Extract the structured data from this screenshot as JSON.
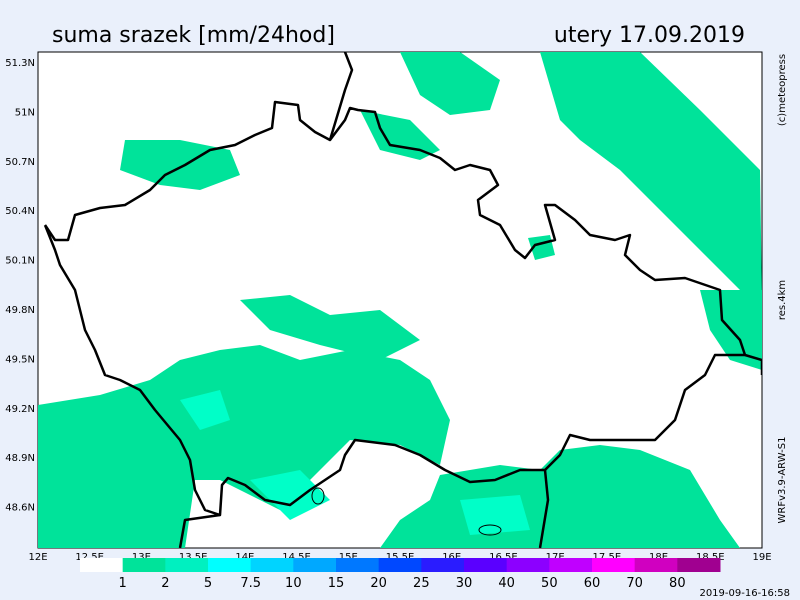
{
  "header": {
    "title": "suma srazek [mm/24hod]",
    "date": "utery 17.09.2019"
  },
  "map": {
    "lat_labels": [
      "51.3N",
      "51N",
      "50.7N",
      "50.4N",
      "50.1N",
      "49.8N",
      "49.5N",
      "49.2N",
      "48.9N",
      "48.6N"
    ],
    "lon_labels": [
      "12E",
      "12.5E",
      "13E",
      "13.5E",
      "14E",
      "14.5E",
      "15E",
      "15.5E",
      "16E",
      "16.5E",
      "17E",
      "17.5E",
      "18E",
      "18.5E",
      "19E"
    ]
  },
  "side": {
    "copyright": "(c)meteopress",
    "resolution": "res.4km",
    "model": "WRFv3.9-ARW-S1"
  },
  "legend": {
    "levels": [
      1,
      2,
      5,
      7.5,
      10,
      15,
      20,
      25,
      30,
      40,
      50,
      60,
      70,
      80
    ],
    "colors": [
      "#ffffff",
      "#00e39a",
      "#00f0c0",
      "#00ffff",
      "#00d4ff",
      "#00a8ff",
      "#0078ff",
      "#0048ff",
      "#2a1cff",
      "#5a00ff",
      "#8c00ff",
      "#c000ff",
      "#ff00ff",
      "#d000c0",
      "#a00090"
    ]
  },
  "footer": {
    "timestamp": "2019-09-16-16:58"
  }
}
